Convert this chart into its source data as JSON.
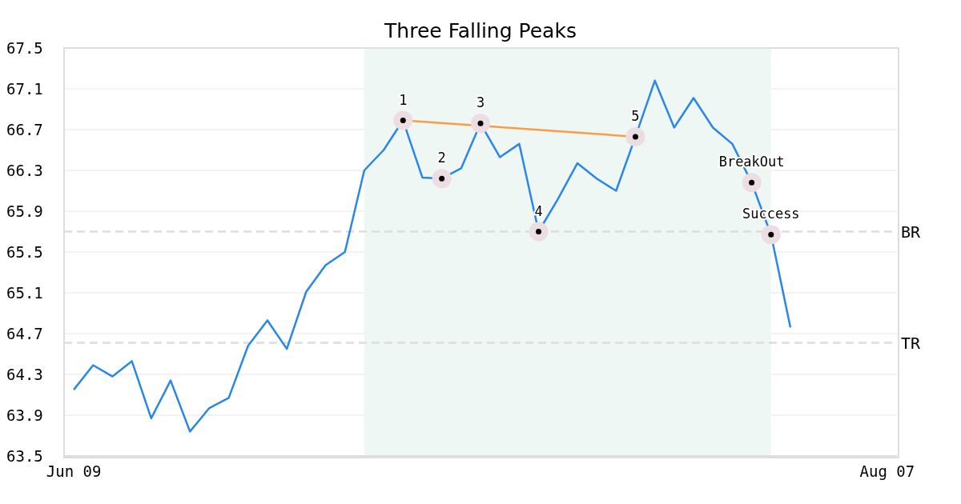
{
  "chart_data": {
    "type": "line",
    "title": "Three Falling Peaks",
    "categories": [
      "Jun 09",
      null,
      null,
      null,
      null,
      null,
      null,
      null,
      null,
      null,
      null,
      null,
      null,
      null,
      null,
      null,
      null,
      null,
      null,
      null,
      null,
      null,
      null,
      null,
      null,
      null,
      null,
      null,
      null,
      null,
      null,
      null,
      null,
      null,
      null,
      null,
      null,
      null,
      null,
      null,
      null,
      null,
      "Aug 07"
    ],
    "series": [
      {
        "color": "#2a86e8",
        "values": [
          64.15,
          64.39,
          64.28,
          64.43,
          63.87,
          64.24,
          63.74,
          63.97,
          64.07,
          64.58,
          64.83,
          64.55,
          65.11,
          65.37,
          65.5,
          66.3,
          66.5,
          66.79,
          66.23,
          66.22,
          66.32,
          66.76,
          66.43,
          66.56,
          65.7,
          66.02,
          66.37,
          66.22,
          66.1,
          66.63,
          67.18,
          66.72,
          67.01,
          66.72,
          66.56,
          66.18,
          65.67,
          64.76,
          null,
          null,
          null,
          null,
          null
        ]
      },
      {
        "type": "line",
        "color": "#f99c45",
        "values": [
          null,
          null,
          null,
          null,
          null,
          null,
          null,
          null,
          null,
          null,
          null,
          null,
          null,
          null,
          null,
          null,
          null,
          66.79,
          null,
          null,
          null,
          null,
          null,
          null,
          null,
          null,
          null,
          null,
          null,
          66.63,
          null,
          null,
          null,
          null,
          null,
          null,
          null,
          null,
          null,
          null,
          null,
          null,
          null
        ]
      },
      {
        "type": "scatter",
        "color": "#000000",
        "marker": "circle",
        "values": [
          null,
          null,
          null,
          null,
          null,
          null,
          null,
          null,
          null,
          null,
          null,
          null,
          null,
          null,
          null,
          null,
          null,
          66.79,
          null,
          66.22,
          null,
          66.76,
          null,
          null,
          65.7,
          null,
          null,
          null,
          null,
          66.63,
          null,
          null,
          null,
          null,
          null,
          66.18,
          65.67,
          null,
          null,
          null,
          null,
          null,
          null
        ]
      }
    ],
    "annotations": [
      {
        "text": "1",
        "y": 66.79
      },
      {
        "text": "2",
        "y": 66.22
      },
      {
        "text": "3",
        "y": 66.76
      },
      {
        "text": "4",
        "y": 65.7
      },
      {
        "text": "5",
        "y": 66.63
      },
      {
        "text": "BreakOut",
        "y": 66.18
      },
      {
        "text": "Success",
        "y": 65.67
      }
    ],
    "ylim": [
      63.5,
      67.5
    ],
    "yticks": [
      63.5,
      63.9,
      64.3,
      64.7,
      65.1,
      65.5,
      65.9,
      66.3,
      66.7,
      67.1,
      67.5
    ],
    "grid": "y",
    "ref_lines": [
      {
        "axis": "y",
        "value": 65.7,
        "label": "BR",
        "color": "#dddddd",
        "line_style": "dashed"
      },
      {
        "axis": "y",
        "value": 64.61,
        "label": "TR",
        "color": "#dddddd",
        "line_style": "dashed"
      }
    ]
  }
}
